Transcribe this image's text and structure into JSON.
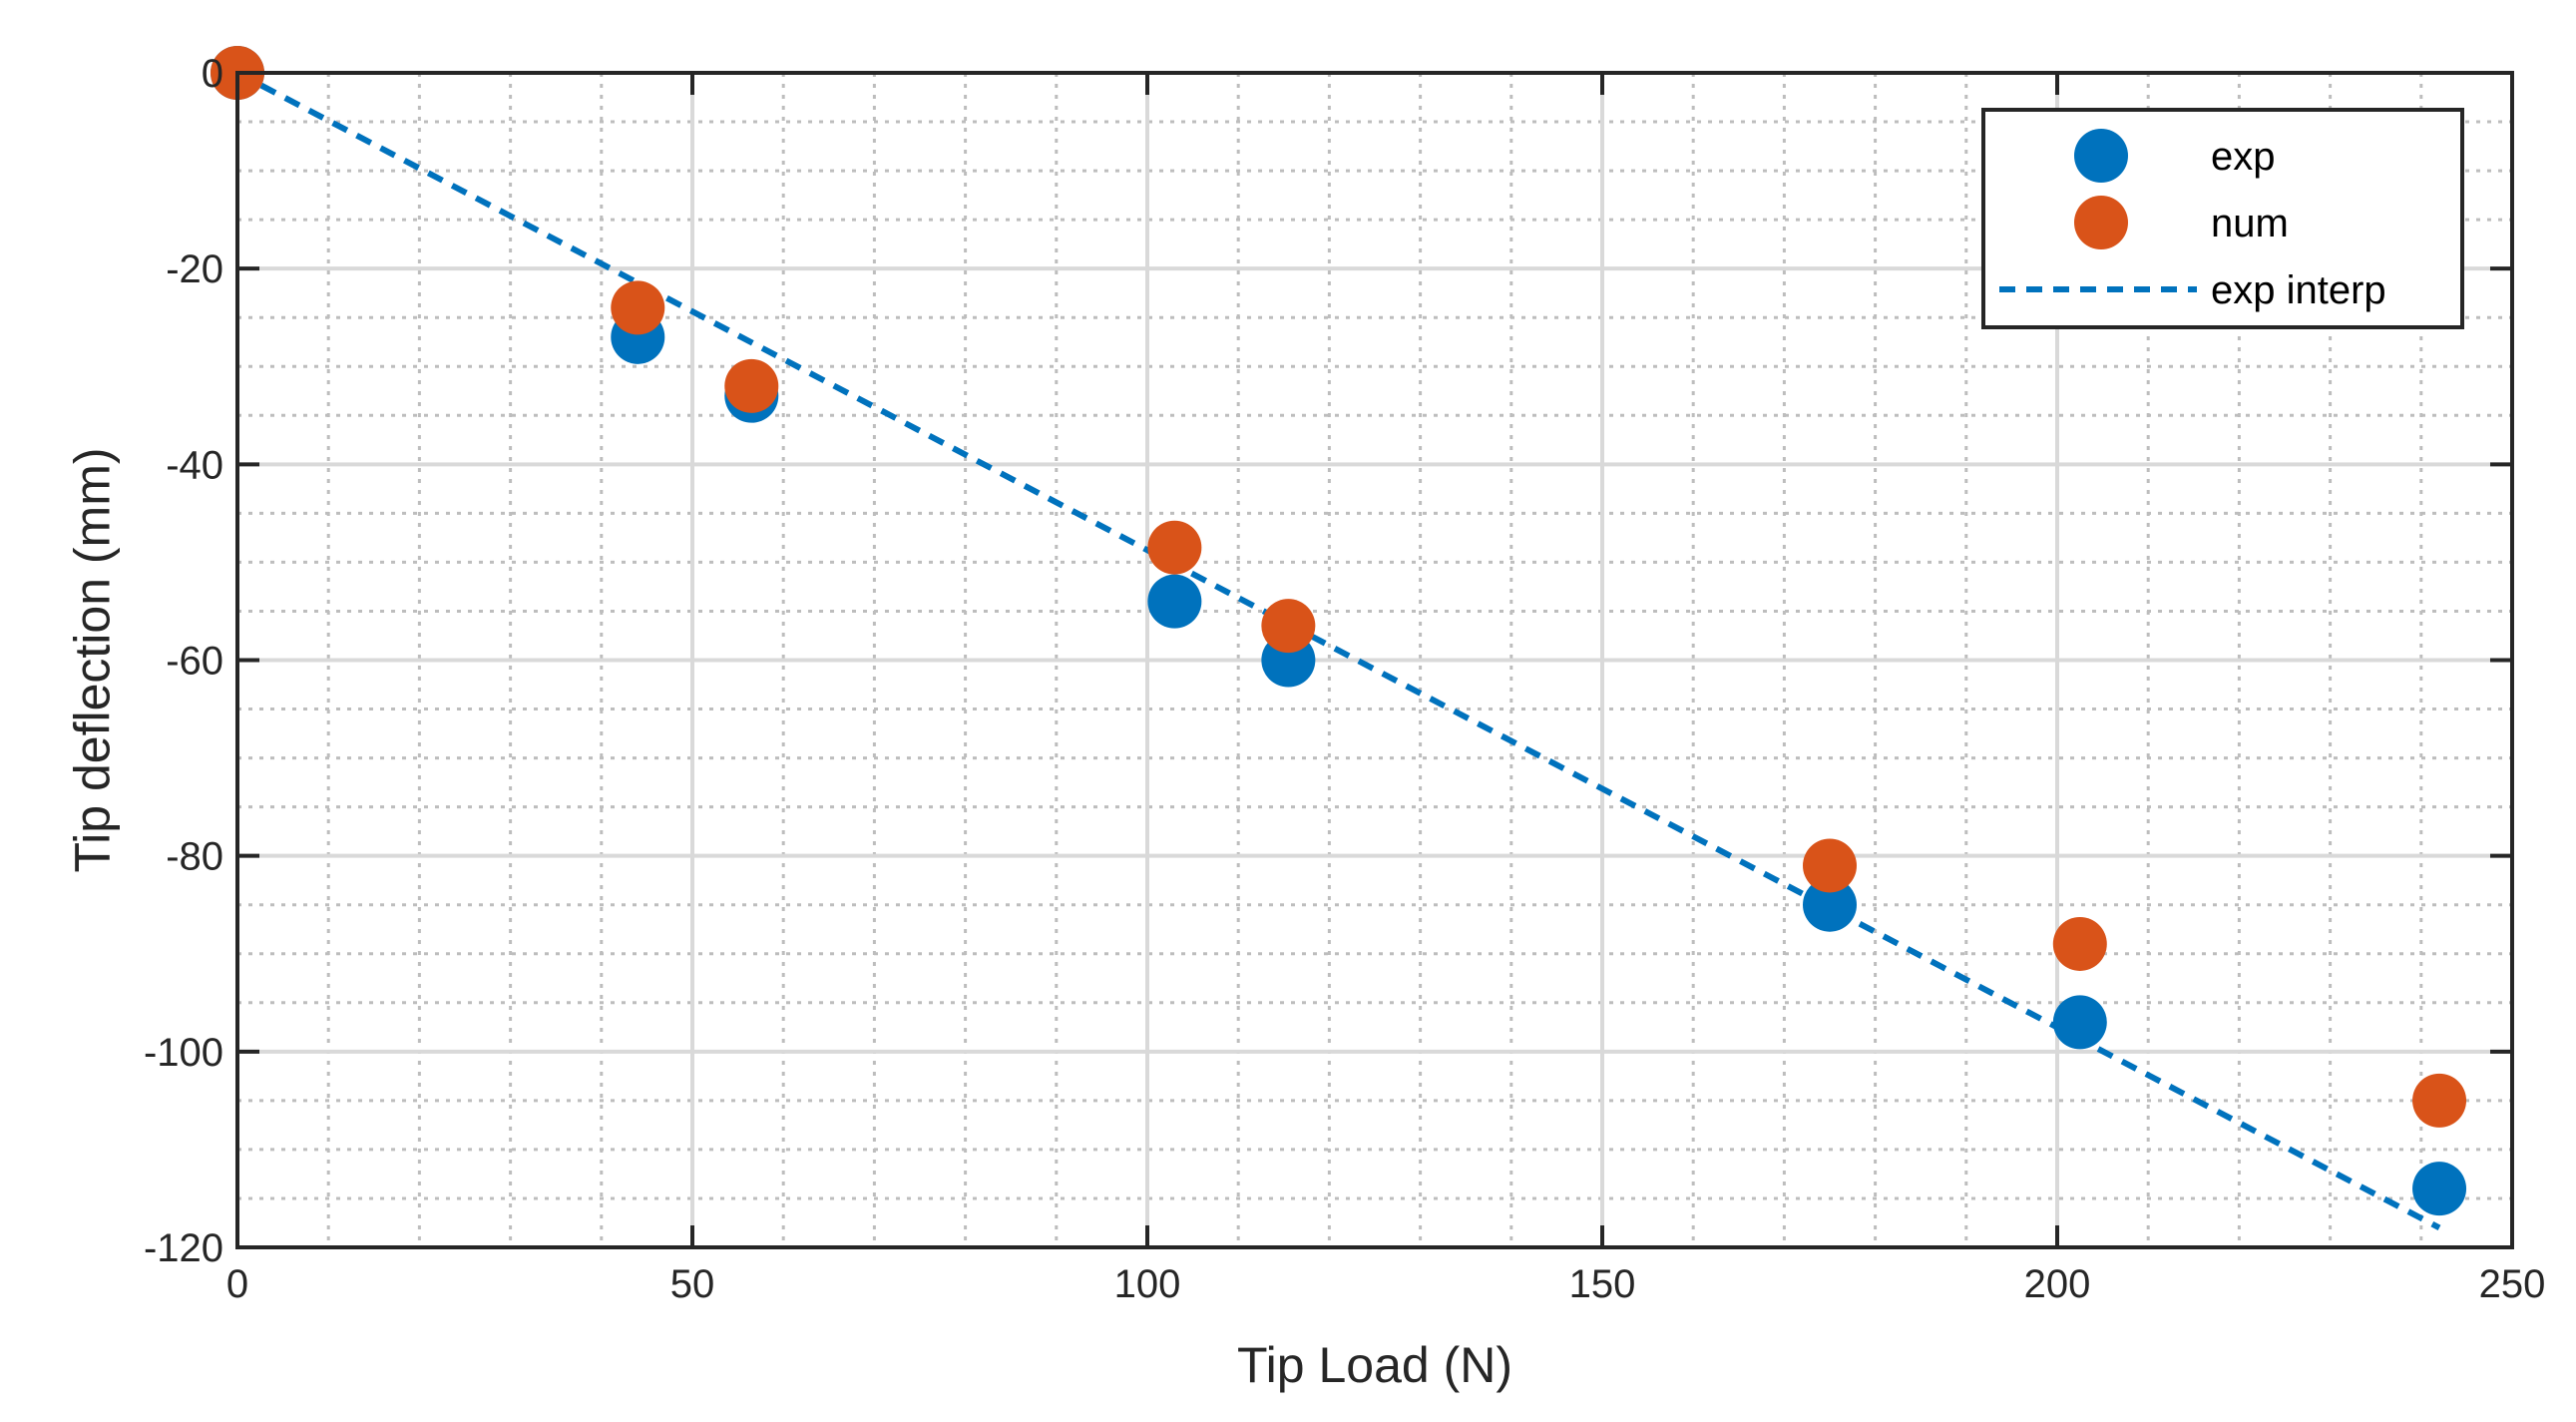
{
  "chart_data": {
    "type": "scatter",
    "title": "",
    "xlabel": "Tip Load (N)",
    "ylabel": "Tip deflection (mm)",
    "xlim": [
      0,
      250
    ],
    "ylim": [
      -120,
      0
    ],
    "xticks": [
      0,
      50,
      100,
      150,
      200,
      250
    ],
    "yticks": [
      0,
      -20,
      -40,
      -60,
      -80,
      -100,
      -120
    ],
    "xtick_labels": [
      "0",
      "50",
      "100",
      "150",
      "200",
      "250"
    ],
    "ytick_labels": [
      "0",
      "-20",
      "-40",
      "-60",
      "-80",
      "-100",
      "-120"
    ],
    "grid": {
      "major": true,
      "minor": true
    },
    "legend_position": "top-right",
    "series": [
      {
        "name": "exp",
        "kind": "markers",
        "color": "#0072BD",
        "x": [
          0,
          44,
          56.5,
          103,
          115.5,
          175,
          202.5,
          242
        ],
        "y": [
          0,
          -27,
          -33,
          -54,
          -60,
          -85,
          -97,
          -114
        ]
      },
      {
        "name": "num",
        "kind": "markers",
        "color": "#D95319",
        "x": [
          0,
          44,
          56.5,
          103,
          115.5,
          175,
          202.5,
          242
        ],
        "y": [
          0,
          -24,
          -32,
          -48.5,
          -56.5,
          -81,
          -89,
          -105
        ]
      },
      {
        "name": "exp interp",
        "kind": "dashed-line",
        "color": "#0072BD",
        "x": [
          0,
          242
        ],
        "y": [
          0,
          -118
        ]
      }
    ]
  }
}
